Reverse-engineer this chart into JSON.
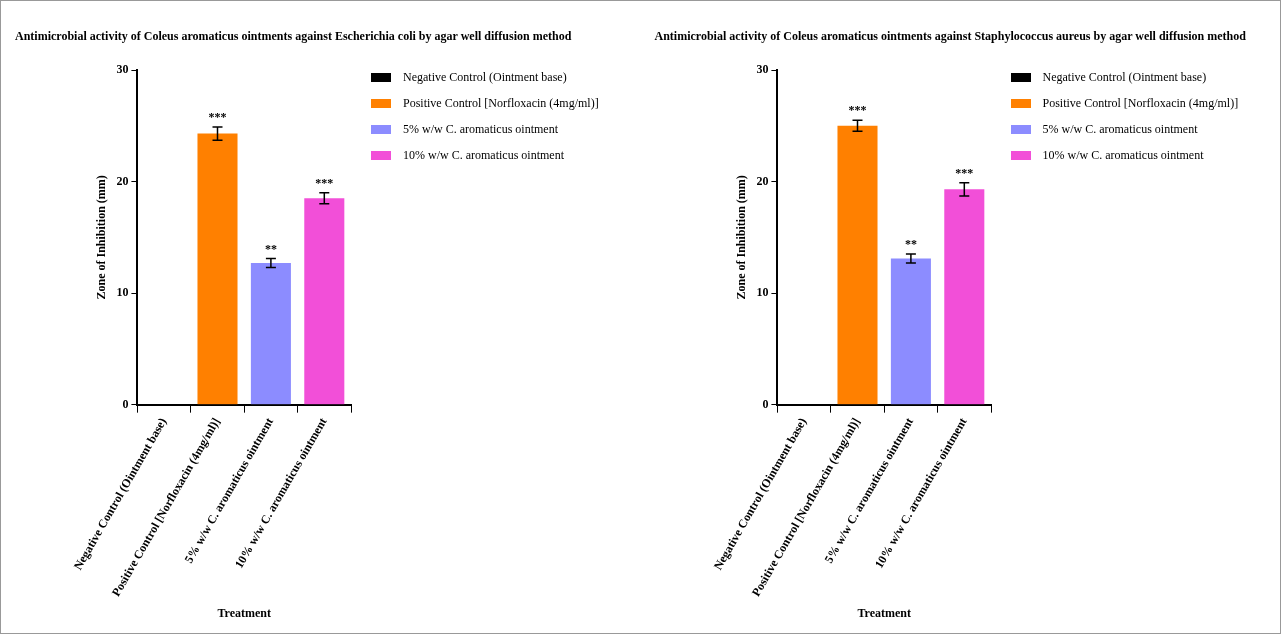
{
  "chart_data": [
    {
      "type": "bar",
      "title": "Antimicrobial activity of Coleus aromaticus ointments against Escherichia coli by agar well diffusion method",
      "xlabel": "Treatment",
      "ylabel": "Zone of Inhibition (mm)",
      "categories": [
        "Negative Control (Ointment base)",
        "Positive Control [Norfloxacin (4mg/ml)]",
        "5% w/w C. aromaticus ointment",
        "10% w/w C. aromaticus ointment"
      ],
      "series": [
        {
          "name": "Negative Control (Ointment base)",
          "color": "#000000",
          "values": [
            0,
            null,
            null,
            null
          ]
        },
        {
          "name": "Positive Control [Norfloxacin (4mg/ml)]",
          "color": "#ff8000",
          "values": [
            null,
            24.3,
            null,
            null
          ],
          "errors": [
            null,
            0.6,
            null,
            null
          ]
        },
        {
          "name": "5% w/w C. aromaticus ointment",
          "color": "#8c8cff",
          "values": [
            null,
            null,
            12.7,
            null
          ],
          "errors": [
            null,
            null,
            0.4,
            null
          ]
        },
        {
          "name": "10% w/w C. aromaticus ointment",
          "color": "#f24fd8",
          "values": [
            null,
            null,
            null,
            18.5
          ],
          "errors": [
            null,
            null,
            null,
            0.5
          ]
        }
      ],
      "ylim": [
        0,
        30
      ],
      "yticks": [
        0,
        10,
        20,
        30
      ],
      "grid": false,
      "legend": "right",
      "annotations": [
        {
          "text": "***",
          "x": "Positive Control [Norfloxacin (4mg/ml)]",
          "y": 24.9
        },
        {
          "text": "**",
          "x": "5% w/w C. aromaticus ointment",
          "y": 13.1
        },
        {
          "text": "***",
          "x": "10% w/w C. aromaticus ointment",
          "y": 19.0
        }
      ]
    },
    {
      "type": "bar",
      "title": "Antimicrobial activity of Coleus aromaticus ointments against Staphylococcus aureus  by agar well diffusion method",
      "xlabel": "Treatment",
      "ylabel": "Zone of Inhibition (mm)",
      "categories": [
        "Negative Control (Ointment base)",
        "Positive Control [Norfloxacin (4mg/ml)]",
        "5% w/w C. aromaticus ointment",
        "10% w/w C. aromaticus ointment"
      ],
      "series": [
        {
          "name": "Negative Control (Ointment base)",
          "color": "#000000",
          "values": [
            0,
            null,
            null,
            null
          ]
        },
        {
          "name": "Positive Control [Norfloxacin (4mg/ml)]",
          "color": "#ff8000",
          "values": [
            null,
            25.0,
            null,
            null
          ],
          "errors": [
            null,
            0.5,
            null,
            null
          ]
        },
        {
          "name": "5% w/w C. aromaticus ointment",
          "color": "#8c8cff",
          "values": [
            null,
            null,
            13.1,
            null
          ],
          "errors": [
            null,
            null,
            0.4,
            null
          ]
        },
        {
          "name": "10% w/w C. aromaticus ointment",
          "color": "#f24fd8",
          "values": [
            null,
            null,
            null,
            19.3
          ],
          "errors": [
            null,
            null,
            null,
            0.6
          ]
        }
      ],
      "ylim": [
        0,
        30
      ],
      "yticks": [
        0,
        10,
        20,
        30
      ],
      "grid": false,
      "legend": "right",
      "annotations": [
        {
          "text": "***",
          "x": "Positive Control [Norfloxacin (4mg/ml)]",
          "y": 25.5
        },
        {
          "text": "**",
          "x": "5% w/w C. aromaticus ointment",
          "y": 13.5
        },
        {
          "text": "***",
          "x": "10% w/w C. aromaticus ointment",
          "y": 19.9
        }
      ]
    }
  ]
}
